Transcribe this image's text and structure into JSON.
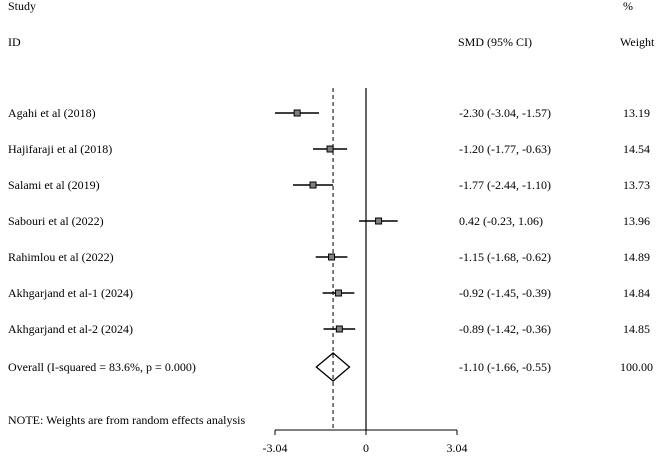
{
  "chart_data": {
    "type": "forest",
    "header": {
      "col1_line1": "Study",
      "col1_line2": "ID",
      "col2": "SMD (95% CI)",
      "col3_line1": "%",
      "col3_line2": "Weight"
    },
    "studies": [
      {
        "id": "Agahi et al (2018)",
        "smd": -2.3,
        "lo": -3.04,
        "hi": -1.57,
        "ci_text": "-2.30 (-3.04, -1.57)",
        "weight": "13.19"
      },
      {
        "id": "Hajifaraji et al (2018)",
        "smd": -1.2,
        "lo": -1.77,
        "hi": -0.63,
        "ci_text": "-1.20 (-1.77, -0.63)",
        "weight": "14.54"
      },
      {
        "id": "Salami et al (2019)",
        "smd": -1.77,
        "lo": -2.44,
        "hi": -1.1,
        "ci_text": "-1.77 (-2.44, -1.10)",
        "weight": "13.73"
      },
      {
        "id": "Sabouri et al (2022)",
        "smd": 0.42,
        "lo": -0.23,
        "hi": 1.06,
        "ci_text": "0.42 (-0.23, 1.06)",
        "weight": "13.96"
      },
      {
        "id": "Rahimlou et al (2022)",
        "smd": -1.15,
        "lo": -1.68,
        "hi": -0.62,
        "ci_text": "-1.15 (-1.68, -0.62)",
        "weight": "14.89"
      },
      {
        "id": "Akhgarjand et al-1 (2024)",
        "smd": -0.92,
        "lo": -1.45,
        "hi": -0.39,
        "ci_text": "-0.92 (-1.45, -0.39)",
        "weight": "14.84"
      },
      {
        "id": "Akhgarjand et al-2 (2024)",
        "smd": -0.89,
        "lo": -1.42,
        "hi": -0.36,
        "ci_text": "-0.89 (-1.42, -0.36)",
        "weight": "14.85"
      }
    ],
    "overall": {
      "id": "Overall  (I-squared = 83.6%, p = 0.000)",
      "smd": -1.1,
      "lo": -1.66,
      "hi": -0.55,
      "ci_text": "-1.10 (-1.66, -0.55)",
      "weight": "100.00"
    },
    "note": "NOTE: Weights are from random effects analysis",
    "x_ticks": [
      {
        "value": -3.04,
        "label": "-3.04"
      },
      {
        "value": 0,
        "label": "0"
      },
      {
        "value": 3.04,
        "label": "3.04"
      }
    ],
    "xlim": [
      -3.04,
      3.04
    ],
    "null_line": 0
  }
}
